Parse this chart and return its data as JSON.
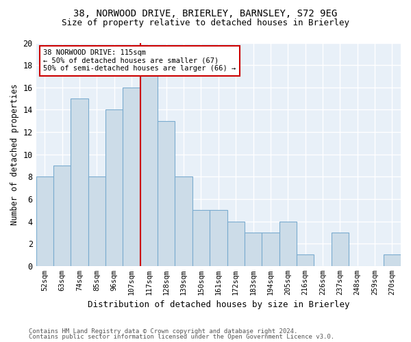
{
  "title1": "38, NORWOOD DRIVE, BRIERLEY, BARNSLEY, S72 9EG",
  "title2": "Size of property relative to detached houses in Brierley",
  "xlabel": "Distribution of detached houses by size in Brierley",
  "ylabel": "Number of detached properties",
  "categories": [
    "52sqm",
    "63sqm",
    "74sqm",
    "85sqm",
    "96sqm",
    "107sqm",
    "117sqm",
    "128sqm",
    "139sqm",
    "150sqm",
    "161sqm",
    "172sqm",
    "183sqm",
    "194sqm",
    "205sqm",
    "216sqm",
    "226sqm",
    "237sqm",
    "248sqm",
    "259sqm",
    "270sqm"
  ],
  "values": [
    8,
    9,
    15,
    8,
    14,
    16,
    17,
    13,
    8,
    5,
    5,
    4,
    3,
    3,
    4,
    1,
    0,
    3,
    0,
    0,
    1
  ],
  "bar_color": "#ccdce8",
  "bar_edge_color": "#7aabcf",
  "ref_line_index": 6,
  "ref_line_label": "38 NORWOOD DRIVE: 115sqm",
  "annotation_line1": "← 50% of detached houses are smaller (67)",
  "annotation_line2": "50% of semi-detached houses are larger (66) →",
  "ylim": [
    0,
    20
  ],
  "yticks": [
    0,
    2,
    4,
    6,
    8,
    10,
    12,
    14,
    16,
    18,
    20
  ],
  "footer1": "Contains HM Land Registry data © Crown copyright and database right 2024.",
  "footer2": "Contains public sector information licensed under the Open Government Licence v3.0.",
  "plot_bg_color": "#e8f0f8",
  "grid_color": "#ffffff",
  "title1_fontsize": 10,
  "title2_fontsize": 9,
  "annotation_box_edge_color": "#cc0000",
  "red_line_color": "#cc0000",
  "bar_width": 1.0
}
